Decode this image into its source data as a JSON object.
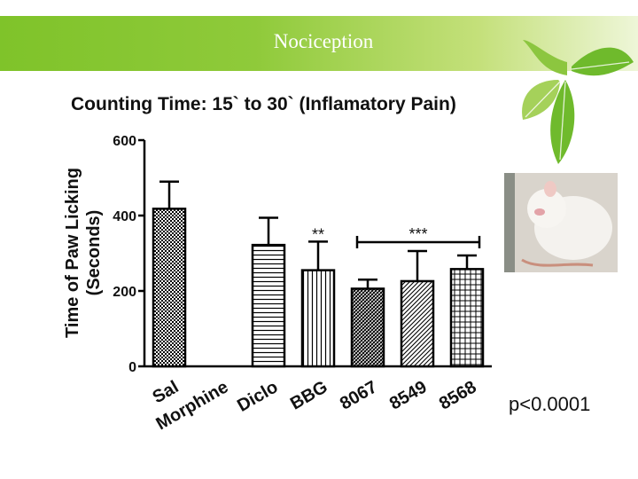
{
  "slide": {
    "title": "Nociception",
    "p_value": "p<0.0001"
  },
  "colors": {
    "banner_start": "#7fc32a",
    "leaf_green": "#6fba2c",
    "bar_stroke": "#000000"
  },
  "images": {
    "photo_icon": "white-rat-photo",
    "decoration_icon": "green-leaves-icon"
  },
  "chart_data": {
    "type": "bar",
    "title": "Counting Time: 15` to 30` (Inflamatory Pain)",
    "ylabel": "Time of Paw Licking",
    "ylabel_units": "(Seconds)",
    "xlabel": "",
    "ylim": [
      0,
      600
    ],
    "yticks": [
      0,
      200,
      400,
      600
    ],
    "categories": [
      "Sal",
      "Morphine",
      "Diclo",
      "BBG",
      "8067",
      "8549",
      "8568"
    ],
    "values": [
      418,
      0,
      322,
      255,
      206,
      226,
      258
    ],
    "errors": [
      72,
      0,
      72,
      76,
      24,
      80,
      36
    ],
    "patterns": [
      "checker",
      "none",
      "hlines",
      "vlines",
      "dense-hatch",
      "diag-hatch",
      "grid"
    ],
    "annotations": [
      {
        "label": "**",
        "category": "BBG"
      },
      {
        "label": "***",
        "from": "8067",
        "to": "8568"
      }
    ]
  }
}
